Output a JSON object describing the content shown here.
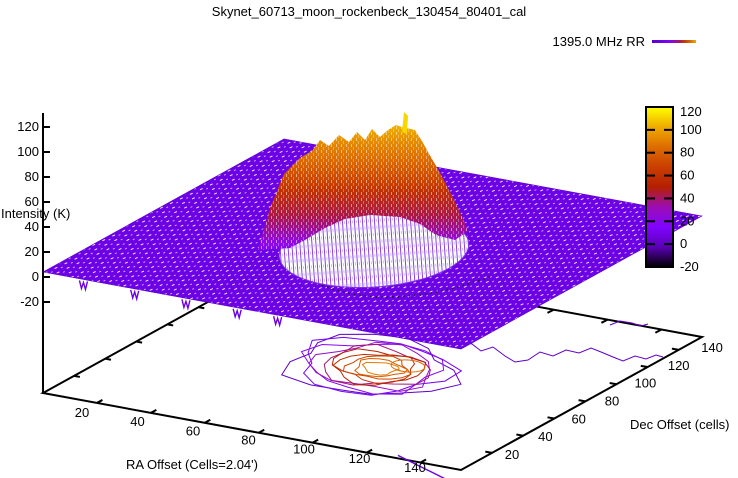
{
  "title": "Skynet_60713_moon_rockenbeck_130454_80401_cal",
  "legend": {
    "label": "1395.0 MHz RR"
  },
  "axes": {
    "x_label": "RA Offset (Cells=2.04')",
    "y_label": "Dec Offset (cells)",
    "z_label": "Intensity (K)"
  },
  "chart_data": {
    "type": "surface3d",
    "title": "Skynet_60713_moon_rockenbeck_130454_80401_cal",
    "series": [
      {
        "name": "1395.0 MHz RR",
        "style": "pm3d colored wireframe surface with contours projected on base"
      }
    ],
    "xlabel": "RA Offset (Cells=2.04')",
    "ylabel": "Dec Offset (cells)",
    "zlabel": "Intensity (K)",
    "x_ticks": [
      20,
      40,
      60,
      80,
      100,
      120,
      140
    ],
    "y_ticks": [
      20,
      40,
      60,
      80,
      100,
      120,
      140
    ],
    "z_ticks": [
      -20,
      0,
      20,
      40,
      60,
      80,
      100,
      120
    ],
    "x_range": [
      0,
      155
    ],
    "y_range": [
      0,
      155
    ],
    "z_range": [
      -20,
      120
    ],
    "grid": false,
    "legend_position": "top-right",
    "surface": {
      "background_level_K": 5,
      "disk_center_cells": [
        75,
        78
      ],
      "disk_radius_cells": 27,
      "plateau_K": 95,
      "peak_K": 115,
      "noise_dips_ra_cells": [
        15,
        34,
        53,
        72,
        87
      ]
    },
    "contours": {
      "levels_K": [
        0,
        10,
        20,
        30,
        40,
        50,
        60,
        70,
        80,
        90
      ],
      "projected_on_base": true
    },
    "colorbar": {
      "min": -20,
      "max": 120,
      "ticks": [
        120,
        100,
        80,
        60,
        40,
        20,
        0,
        -20
      ],
      "palette": "gnuplot rgbformulae 7,5,15 (black-purple-red-yellow)"
    }
  },
  "colors": {
    "background": "#ffffff",
    "axis": "#000000",
    "surface_low": "#6c01e6",
    "surface_high": "#efab00",
    "text": "#000000"
  }
}
